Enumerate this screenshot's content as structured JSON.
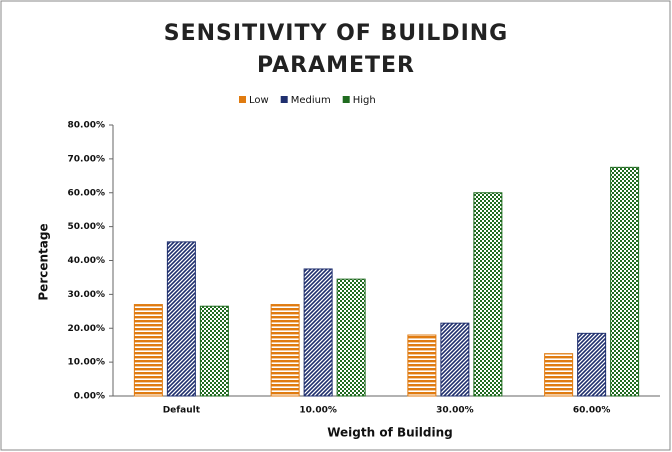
{
  "chart_data": {
    "type": "bar",
    "title": "SENSITIVITY OF BUILDING PARAMETER",
    "x_label": "Weigth of Building",
    "y_label": "Percentage",
    "categories": [
      "Default",
      "10.00%",
      "30.00%",
      "60.00%"
    ],
    "series": [
      {
        "name": "Low",
        "color": "#e07b10",
        "values": [
          27,
          27,
          18,
          12.5
        ]
      },
      {
        "name": "Medium",
        "color": "#1f2f6e",
        "values": [
          45.5,
          37.5,
          21.5,
          18.5
        ]
      },
      {
        "name": "High",
        "color": "#1f6b1f",
        "values": [
          26.5,
          34.5,
          60,
          67.5
        ]
      }
    ],
    "ylim": [
      0,
      80
    ],
    "yticks": [
      {
        "value": 0,
        "label": "0.00%"
      },
      {
        "value": 10,
        "label": "10.00%"
      },
      {
        "value": 20,
        "label": "20.00%"
      },
      {
        "value": 30,
        "label": "30.00%"
      },
      {
        "value": 40,
        "label": "40.00%"
      },
      {
        "value": 50,
        "label": "50.00%"
      },
      {
        "value": 60,
        "label": "60.00%"
      },
      {
        "value": 70,
        "label": "70.00%"
      },
      {
        "value": 80,
        "label": "80.00%"
      }
    ],
    "legend": "top",
    "grid": false
  }
}
